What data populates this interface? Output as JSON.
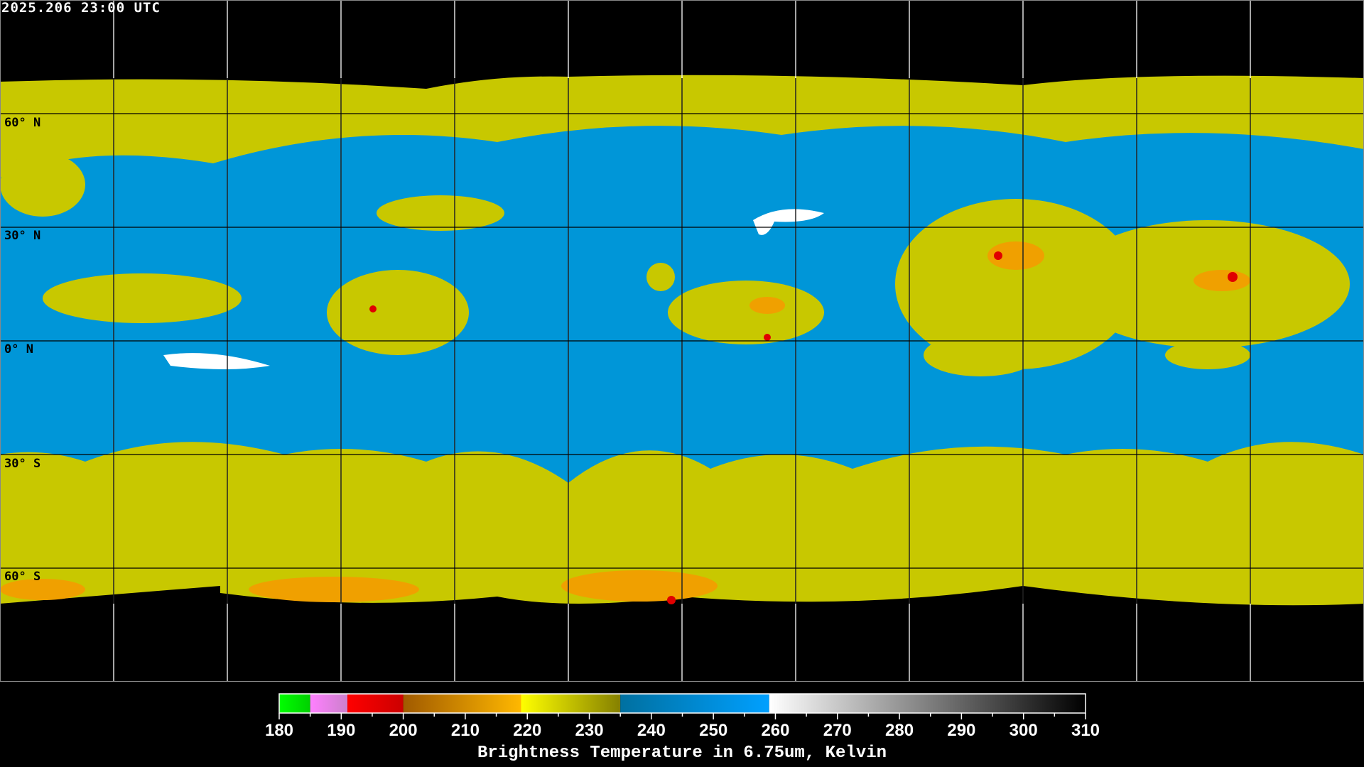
{
  "timestamp": "2025.206 23:00 UTC",
  "lat_labels": [
    "60° N",
    "30° N",
    "0° N",
    "30° S",
    "60° S"
  ],
  "colorbar": {
    "title": "Brightness Temperature in 6.75um, Kelvin",
    "min": 180,
    "max": 310,
    "ticks": [
      "180",
      "190",
      "200",
      "210",
      "220",
      "230",
      "240",
      "250",
      "260",
      "270",
      "280",
      "290",
      "300",
      "310"
    ],
    "segments": [
      {
        "from": 180,
        "to": 185,
        "c1": "#00ff00",
        "c2": "#00d000"
      },
      {
        "from": 185,
        "to": 191,
        "c1": "#ff80ff",
        "c2": "#cc80cc"
      },
      {
        "from": 191,
        "to": 200,
        "c1": "#ff0000",
        "c2": "#cc0000"
      },
      {
        "from": 200,
        "to": 219,
        "c1": "#a05a00",
        "c2": "#ffb800"
      },
      {
        "from": 219,
        "to": 235,
        "c1": "#ffff00",
        "c2": "#858000"
      },
      {
        "from": 235,
        "to": 259,
        "c1": "#0070a0",
        "c2": "#00a0ff"
      },
      {
        "from": 259,
        "to": 310,
        "c1": "#ffffff",
        "c2": "#000000"
      }
    ]
  },
  "colors": {
    "moist": "#c8c800",
    "dry": "#0096d8",
    "cold": "#f0a000",
    "very_cold": "#e00000",
    "warm": "#ffffff"
  }
}
